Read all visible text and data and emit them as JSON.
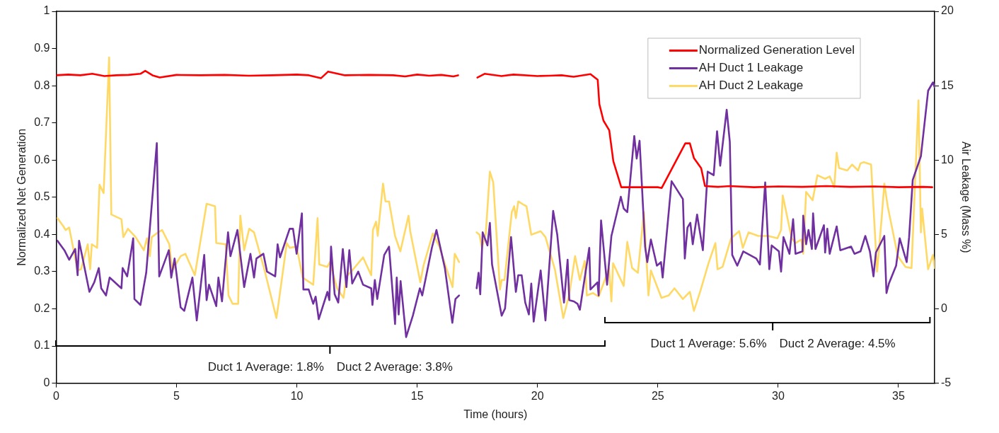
{
  "chart_data": {
    "type": "line",
    "xlabel": "Time (hours)",
    "ylabel": "Normalized Net Generation",
    "y2label": "Air Leakage (Mass %)",
    "xlim": [
      0,
      36.5
    ],
    "xticks": [
      0,
      5,
      10,
      15,
      20,
      25,
      30,
      35
    ],
    "ylim": [
      0,
      1
    ],
    "yticks": [
      0,
      0.1,
      0.2,
      0.3,
      0.4,
      0.5,
      0.6,
      0.7,
      0.8,
      0.9,
      1
    ],
    "y2lim": [
      -5,
      20
    ],
    "y2ticks": [
      -5,
      0,
      5,
      10,
      15,
      20
    ],
    "grid": false,
    "legend": "top right",
    "marker": "none",
    "line_style": "solid",
    "series": [
      {
        "name": "Normalized Generation Level",
        "color": "#ff0000",
        "x": [
          0,
          0.5,
          1,
          1.5,
          2,
          2.5,
          3,
          3.5,
          3.7,
          4,
          4.3,
          5,
          6,
          7,
          8,
          9,
          10,
          10.5,
          11,
          11.3,
          12,
          13,
          14,
          14.5,
          15,
          15.5,
          16,
          16.5,
          16.7,
          17.1,
          17.5,
          17.8,
          18.5,
          19,
          20,
          20.5,
          21,
          21.5,
          22.2,
          22.5,
          22.57,
          22.74,
          22.98,
          23.15,
          23.48,
          24,
          25,
          25.16,
          26.14,
          26.33,
          26.5,
          26.8,
          26.96,
          27.5,
          28,
          29,
          30,
          31,
          32,
          33,
          34,
          35,
          36,
          36.4
        ],
        "values": [
          0.828,
          0.83,
          0.828,
          0.832,
          0.826,
          0.828,
          0.829,
          0.832,
          0.84,
          0.828,
          0.822,
          0.829,
          0.828,
          0.829,
          0.827,
          0.828,
          0.83,
          0.828,
          0.82,
          0.838,
          0.828,
          0.829,
          0.828,
          0.825,
          0.83,
          0.827,
          0.829,
          0.825,
          0.828,
          null,
          0.822,
          0.832,
          0.826,
          0.83,
          0.826,
          0.827,
          0.828,
          0.824,
          0.831,
          0.816,
          0.75,
          0.706,
          0.68,
          0.597,
          0.527,
          0.527,
          0.527,
          0.525,
          0.645,
          0.645,
          0.605,
          0.578,
          0.53,
          0.528,
          0.53,
          0.527,
          0.529,
          0.528,
          0.53,
          0.528,
          0.529,
          0.527,
          0.528,
          0.527
        ]
      },
      {
        "name": "AH Duct 1 Leakage",
        "color": "#7030a0",
        "axis": "y2",
        "x": [
          0.05,
          0.34,
          0.54,
          0.79,
          0.89,
          0.95,
          1.38,
          1.58,
          1.77,
          1.87,
          2.07,
          2.22,
          2.71,
          2.76,
          2.95,
          3.2,
          3.25,
          3.5,
          3.74,
          4.18,
          4.28,
          4.68,
          4.78,
          4.92,
          5.17,
          5.32,
          5.66,
          5.84,
          6.15,
          6.25,
          6.35,
          6.65,
          6.74,
          6.89,
          7.14,
          7.24,
          7.53,
          7.81,
          8.07,
          8.22,
          8.32,
          8.61,
          8.76,
          9.1,
          9.2,
          9.3,
          9.7,
          9.84,
          9.99,
          10.21,
          10.27,
          10.49,
          10.68,
          10.78,
          10.91,
          11.27,
          11.35,
          11.42,
          11.57,
          11.72,
          11.91,
          12.06,
          12.18,
          12.3,
          12.55,
          12.75,
          13.09,
          13.14,
          13.24,
          13.34,
          13.63,
          13.83,
          14.08,
          14.15,
          14.23,
          14.31,
          14.54,
          14.82,
          15.11,
          15.21,
          15.61,
          15.8,
          16.15,
          16.46,
          16.59,
          16.74,
          17.1,
          17.47,
          17.55,
          17.62,
          17.72,
          17.92,
          18.02,
          18.11,
          18.51,
          18.65,
          18.9,
          19.1,
          19.2,
          19.34,
          19.49,
          19.64,
          19.74,
          19.84,
          20.13,
          20.33,
          20.65,
          20.82,
          21.1,
          21.25,
          21.32,
          21.51,
          21.66,
          21.76,
          22.15,
          22.2,
          22.49,
          22.54,
          22.64,
          22.89,
          23.07,
          23.46,
          23.58,
          23.73,
          24.02,
          24.12,
          24.24,
          24.47,
          24.56,
          24.71,
          24.96,
          25.13,
          25.2,
          25.57,
          26.04,
          26.12,
          26.23,
          26.35,
          26.45,
          26.63,
          26.87,
          27.07,
          27.32,
          27.46,
          27.59,
          27.86,
          27.99,
          28.09,
          28.3,
          28.55,
          29.09,
          29.24,
          29.46,
          29.63,
          29.73,
          30.03,
          30.12,
          30.22,
          30.47,
          30.62,
          30.72,
          31.01,
          31.04,
          31.16,
          31.26,
          31.4,
          31.45,
          31.55,
          31.9,
          31.95,
          32.04,
          32.14,
          32.43,
          32.58,
          33.03,
          33.17,
          33.42,
          33.62,
          33.81,
          33.96,
          34.06,
          34.41,
          34.5,
          34.6,
          34.9,
          35.05,
          35.34,
          35.44,
          35.59,
          35.93,
          36.23,
          36.43,
          36.5
        ],
        "values": [
          4.58,
          3.94,
          3.3,
          4.02,
          2.26,
          4.58,
          1.14,
          1.78,
          2.74,
          1.38,
          0.9,
          2.1,
          1.38,
          2.74,
          2.18,
          4.74,
          0.66,
          0.26,
          2.42,
          11.14,
          2.18,
          3.94,
          2.1,
          3.38,
          0.1,
          -0.14,
          2.1,
          -0.78,
          3.62,
          0.58,
          1.62,
          0.18,
          2.1,
          0.5,
          5.14,
          3.54,
          5.3,
          1.46,
          3.7,
          2.1,
          3.38,
          3.7,
          2.5,
          2.18,
          4.34,
          3.46,
          5.38,
          5.38,
          3.7,
          6.42,
          1.3,
          1.3,
          0.34,
          0.82,
          -0.7,
          1.14,
          0.58,
          4.18,
          0.98,
          0.42,
          4.02,
          1.46,
          3.94,
          1.7,
          2.5,
          1.62,
          1.38,
          0.26,
          1.94,
          0.66,
          3.62,
          4.18,
          -1.02,
          2.1,
          -0.38,
          1.86,
          -1.9,
          -0.46,
          1.38,
          0.9,
          4.1,
          5.3,
          2.74,
          -0.94,
          0.66,
          0.9,
          null,
          1.38,
          2.42,
          0.98,
          5.14,
          4.26,
          5.78,
          2.98,
          -0.46,
          0.02,
          4.82,
          1.14,
          2.26,
          2.26,
          0.42,
          -0.38,
          1.7,
          -0.86,
          2.58,
          -0.78,
          6.58,
          4.98,
          0.42,
          3.3,
          0.58,
          0.5,
          0.34,
          -0.06,
          4.1,
          1.3,
          1.78,
          0.9,
          5.94,
          1.62,
          4.9,
          7.54,
          6.74,
          6.5,
          11.62,
          10.1,
          11.3,
          4.18,
          3.14,
          4.66,
          2.9,
          3.14,
          2.1,
          8.58,
          7.38,
          3.38,
          5.46,
          5.78,
          4.34,
          6.34,
          3.94,
          9.22,
          8.98,
          11.94,
          9.62,
          13.38,
          11.22,
          3.62,
          2.9,
          3.86,
          3.38,
          2.98,
          8.5,
          2.66,
          4.26,
          3.86,
          2.5,
          4.82,
          3.7,
          6.02,
          3.7,
          3.86,
          6.26,
          4.34,
          5.3,
          4.02,
          6.42,
          4.02,
          5.62,
          3.78,
          5.38,
          3.7,
          5.54,
          3.94,
          4.18,
          3.7,
          3.86,
          4.9,
          3.86,
          2.18,
          3.78,
          4.9,
          1.06,
          1.7,
          2.9,
          4.74,
          3.14,
          4.82,
          8.66,
          10.26,
          14.66,
          15.22,
          14.9
        ]
      },
      {
        "name": "AH Duct 2 Leakage",
        "color": "#ffd966",
        "axis": "y2",
        "x": [
          0.05,
          0.3,
          0.39,
          0.54,
          0.89,
          1.03,
          1.31,
          1.41,
          1.48,
          1.7,
          1.8,
          1.97,
          2.2,
          2.29,
          2.71,
          2.79,
          2.98,
          3.3,
          3.64,
          3.77,
          3.89,
          3.97,
          4.23,
          4.4,
          4.7,
          4.82,
          5.17,
          5.37,
          5.76,
          6.25,
          6.6,
          6.65,
          7.04,
          7.16,
          7.33,
          7.56,
          7.65,
          7.81,
          8.02,
          8.22,
          8.66,
          9.15,
          9.25,
          9.58,
          9.7,
          9.99,
          10.24,
          10.68,
          10.86,
          10.93,
          11.27,
          11.37,
          11.67,
          11.94,
          12.06,
          12.3,
          12.75,
          13.09,
          13.16,
          13.29,
          13.36,
          13.58,
          13.68,
          13.83,
          14.08,
          14.3,
          14.64,
          14.71,
          15.13,
          15.26,
          15.65,
          15.9,
          16.47,
          16.56,
          16.74,
          17.1,
          17.47,
          17.59,
          17.69,
          17.85,
          18.02,
          18.16,
          18.44,
          18.51,
          18.63,
          18.93,
          19.03,
          19.1,
          19.2,
          19.44,
          19.54,
          19.74,
          20.13,
          20.33,
          20.72,
          21.07,
          21.32,
          21.56,
          21.76,
          21.96,
          22.05,
          22.3,
          22.54,
          22.74,
          22.97,
          23.07,
          23.14,
          23.58,
          23.73,
          23.93,
          24.17,
          24.42,
          24.61,
          24.71,
          25.15,
          25.45,
          25.69,
          26.04,
          26.33,
          26.5,
          26.77,
          27.12,
          27.39,
          27.48,
          27.69,
          28.04,
          28.38,
          28.53,
          28.77,
          29.17,
          29.58,
          29.97,
          30.12,
          30.19,
          30.56,
          30.72,
          30.96,
          31.04,
          31.16,
          31.43,
          31.63,
          31.95,
          32.14,
          32.33,
          32.43,
          32.53,
          32.87,
          33.07,
          33.32,
          33.42,
          33.56,
          33.86,
          34.11,
          34.3,
          34.41,
          34.55,
          34.97,
          35.29,
          35.54,
          35.83,
          35.93,
          35.98,
          36.23,
          36.43,
          36.5
        ],
        "values": [
          6.1,
          5.54,
          5.3,
          5.46,
          2.58,
          2.66,
          4.34,
          2.66,
          4.34,
          4.1,
          8.34,
          7.78,
          16.9,
          6.34,
          6.02,
          4.82,
          5.38,
          4.82,
          3.94,
          4.74,
          3.54,
          4.82,
          5.14,
          5.3,
          4.34,
          2.58,
          3.54,
          3.7,
          2.26,
          7.06,
          6.9,
          4.42,
          4.34,
          0.9,
          0.34,
          0.34,
          6.26,
          3.94,
          5.38,
          5.14,
          2.58,
          -0.62,
          0.5,
          4.42,
          4.1,
          4.18,
          2.1,
          1.62,
          6.1,
          2.98,
          2.82,
          3.14,
          1.38,
          0.74,
          2.18,
          2.58,
          3.46,
          2.26,
          5.3,
          5.86,
          4.9,
          8.42,
          7.22,
          7.22,
          4.9,
          3.86,
          6.26,
          5.22,
          1.78,
          2.9,
          5.06,
          4.26,
          1.46,
          3.7,
          3.14,
          null,
          5.14,
          4.98,
          4.1,
          5.06,
          9.22,
          8.5,
          1.3,
          1.94,
          1.94,
          6.5,
          6.9,
          6.1,
          7.22,
          6.98,
          6.9,
          4.98,
          5.22,
          4.82,
          2.66,
          -0.62,
          0.98,
          3.54,
          1.94,
          3.22,
          0.9,
          1.06,
          0.82,
          1.7,
          2.74,
          0.5,
          3.06,
          1.54,
          4.5,
          2.74,
          2.42,
          6.5,
          0.9,
          2.58,
          0.74,
          0.9,
          1.38,
          0.66,
          1.14,
          -0.14,
          1.22,
          3.14,
          4.42,
          2.66,
          2.82,
          4.74,
          5.22,
          4.1,
          5.14,
          4.9,
          4.9,
          4.74,
          5.3,
          7.62,
          4.74,
          4.42,
          4.66,
          3.7,
          7.86,
          7.3,
          8.98,
          8.74,
          8.9,
          8.18,
          10.5,
          9.46,
          9.3,
          9.7,
          9.3,
          9.78,
          9.86,
          9.7,
          2.5,
          6.1,
          8.42,
          6.9,
          3.54,
          2.82,
          2.74,
          14.02,
          5.14,
          6.74,
          2.66,
          3.62,
          2.74
        ]
      }
    ],
    "annotations": [
      "Duct 1 Average: 1.8%",
      "Duct 2 Average: 3.8%",
      "Duct 1 Average: 5.6%",
      "Duct 2 Average: 4.5%"
    ]
  }
}
